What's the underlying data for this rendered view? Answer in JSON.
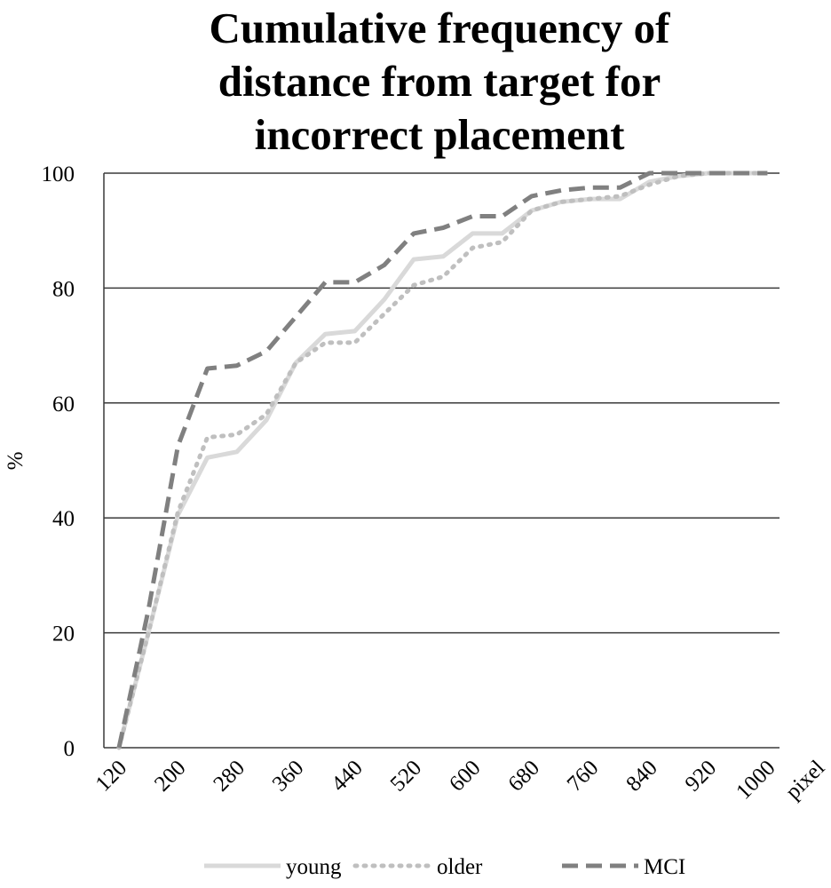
{
  "chart_data": {
    "type": "line",
    "title_lines": [
      "Cumulative frequency of",
      "distance from target for",
      "incorrect placement"
    ],
    "xlabel": "pixel",
    "ylabel": "%",
    "ylim": [
      0,
      100
    ],
    "y_ticks": [
      0,
      20,
      40,
      60,
      80,
      100
    ],
    "x_tick_labels": [
      "120",
      "200",
      "280",
      "360",
      "440",
      "520",
      "600",
      "680",
      "760",
      "840",
      "920",
      "1000"
    ],
    "grid": "horizontal",
    "legend_position": "bottom",
    "x": [
      120,
      160,
      200,
      240,
      280,
      320,
      360,
      400,
      440,
      480,
      520,
      560,
      600,
      640,
      680,
      720,
      760,
      800,
      840,
      880,
      920,
      960,
      1000
    ],
    "series": [
      {
        "name": "young",
        "color": "#d9d9d9",
        "dash": "solid",
        "values": [
          0,
          20,
          40.5,
          50.5,
          51.5,
          57,
          67,
          72,
          72.5,
          78,
          85,
          85.5,
          89.5,
          89.5,
          93.5,
          95,
          95.5,
          95.5,
          98.5,
          99.5,
          100,
          100,
          100
        ]
      },
      {
        "name": "older",
        "color": "#bfbfbf",
        "dash": "dotted",
        "values": [
          0,
          20,
          41,
          54,
          54.5,
          58,
          67,
          70.5,
          70.5,
          75.5,
          80.5,
          82,
          87,
          88,
          93.5,
          95,
          95.5,
          96,
          98,
          99.5,
          100,
          100,
          100
        ]
      },
      {
        "name": "MCI",
        "color": "#808080",
        "dash": "dashed",
        "values": [
          0,
          24,
          52.5,
          66,
          66.5,
          69,
          75,
          81,
          81,
          84,
          89.5,
          90.5,
          92.5,
          92.5,
          96,
          97,
          97.5,
          97.5,
          100,
          100,
          100,
          100,
          100
        ]
      }
    ]
  }
}
